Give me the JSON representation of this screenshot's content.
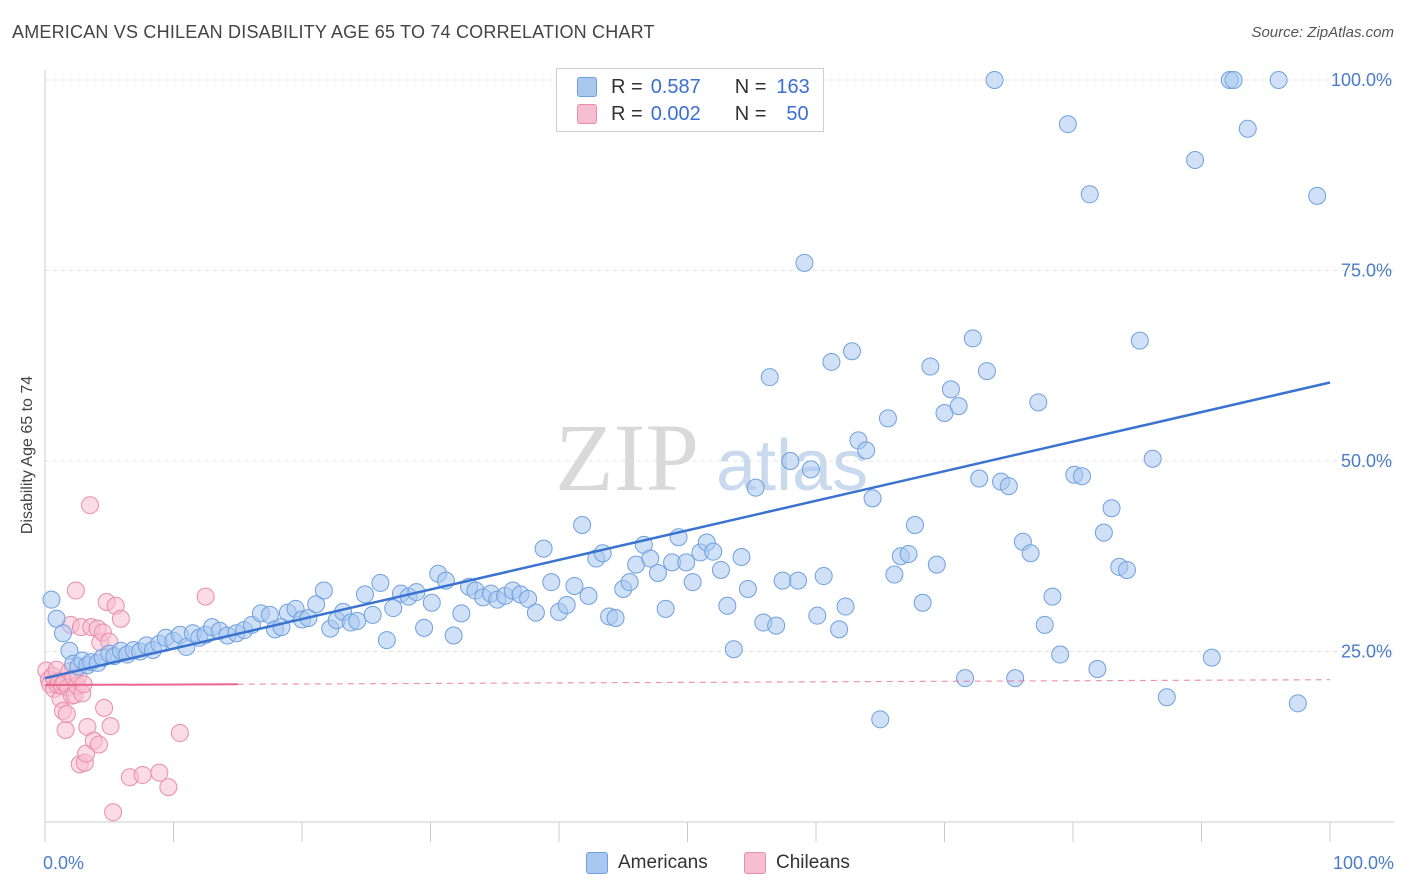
{
  "header": {
    "title": "AMERICAN VS CHILEAN DISABILITY AGE 65 TO 74 CORRELATION CHART",
    "source": "Source: ZipAtlas.com"
  },
  "watermark": {
    "zip": "ZIP",
    "atlas": "atlas"
  },
  "legend": {
    "r_label": "R =",
    "n_label": "N =",
    "americans": {
      "r": "0.587",
      "n": "163"
    },
    "chileans": {
      "r": "0.002",
      "n": "50"
    }
  },
  "colors": {
    "american_fill": "#a9c8f0",
    "american_stroke": "#6fa0e0",
    "american_line": "#3a73d0",
    "chilean_fill": "#f7bdd0",
    "chilean_stroke": "#ea8cab",
    "chilean_line": "#e8668e",
    "tick_text": "#4a7cc9"
  },
  "chart_data": {
    "type": "scatter",
    "title": "AMERICAN VS CHILEAN DISABILITY AGE 65 TO 74 CORRELATION CHART",
    "xlabel": "",
    "ylabel": "Disability Age 65 to 74",
    "xlim": [
      0,
      100
    ],
    "ylim": [
      0,
      102
    ],
    "x_tick_labels": [
      "0.0%",
      "100.0%"
    ],
    "y_ticks": [
      25,
      50,
      75,
      100
    ],
    "y_tick_labels": [
      "25.0%",
      "50.0%",
      "75.0%",
      "100.0%"
    ],
    "grid": true,
    "legend_position": "top-center",
    "series": [
      {
        "name": "Americans",
        "r": 0.587,
        "n": 163,
        "trend": {
          "x": [
            0,
            100
          ],
          "y": [
            21.5,
            60.3
          ]
        },
        "points": [
          [
            0.5,
            31.8
          ],
          [
            0.9,
            29.3
          ],
          [
            1.4,
            27.4
          ],
          [
            1.9,
            25.1
          ],
          [
            2.2,
            23.4
          ],
          [
            2.6,
            23.0
          ],
          [
            2.9,
            23.8
          ],
          [
            3.3,
            23.2
          ],
          [
            3.6,
            23.6
          ],
          [
            4.1,
            23.5
          ],
          [
            4.5,
            24.2
          ],
          [
            5.0,
            24.7
          ],
          [
            5.4,
            24.4
          ],
          [
            5.9,
            25.1
          ],
          [
            6.4,
            24.6
          ],
          [
            6.9,
            25.2
          ],
          [
            7.4,
            25.0
          ],
          [
            7.9,
            25.8
          ],
          [
            8.4,
            25.2
          ],
          [
            8.9,
            26.0
          ],
          [
            9.4,
            26.8
          ],
          [
            10.0,
            26.4
          ],
          [
            10.5,
            27.2
          ],
          [
            11.0,
            25.6
          ],
          [
            11.5,
            27.4
          ],
          [
            12.0,
            26.8
          ],
          [
            12.5,
            27.2
          ],
          [
            13.0,
            28.2
          ],
          [
            13.6,
            27.7
          ],
          [
            14.2,
            27.1
          ],
          [
            14.9,
            27.4
          ],
          [
            15.5,
            27.8
          ],
          [
            16.1,
            28.5
          ],
          [
            16.8,
            30.0
          ],
          [
            17.5,
            29.8
          ],
          [
            17.9,
            27.9
          ],
          [
            18.4,
            28.2
          ],
          [
            18.9,
            30.1
          ],
          [
            19.5,
            30.6
          ],
          [
            20.0,
            29.2
          ],
          [
            20.5,
            29.4
          ],
          [
            21.1,
            31.2
          ],
          [
            21.7,
            33.0
          ],
          [
            22.2,
            28.0
          ],
          [
            22.7,
            29.1
          ],
          [
            23.2,
            30.2
          ],
          [
            23.8,
            28.8
          ],
          [
            24.3,
            29.0
          ],
          [
            24.9,
            32.5
          ],
          [
            25.5,
            29.8
          ],
          [
            26.1,
            34.0
          ],
          [
            26.6,
            26.5
          ],
          [
            27.1,
            30.7
          ],
          [
            27.7,
            32.6
          ],
          [
            28.3,
            32.2
          ],
          [
            28.9,
            32.8
          ],
          [
            29.5,
            28.1
          ],
          [
            30.1,
            31.4
          ],
          [
            30.6,
            35.2
          ],
          [
            31.2,
            34.3
          ],
          [
            31.8,
            27.1
          ],
          [
            32.4,
            30.0
          ],
          [
            33.0,
            33.5
          ],
          [
            33.5,
            33.0
          ],
          [
            34.1,
            32.1
          ],
          [
            34.7,
            32.6
          ],
          [
            35.2,
            31.8
          ],
          [
            35.8,
            32.3
          ],
          [
            36.4,
            33.0
          ],
          [
            37.0,
            32.5
          ],
          [
            37.6,
            31.9
          ],
          [
            38.2,
            30.1
          ],
          [
            38.8,
            38.5
          ],
          [
            39.4,
            34.1
          ],
          [
            40.0,
            30.2
          ],
          [
            40.6,
            31.1
          ],
          [
            41.2,
            33.6
          ],
          [
            41.8,
            41.6
          ],
          [
            42.3,
            32.3
          ],
          [
            42.9,
            37.2
          ],
          [
            43.4,
            37.9
          ],
          [
            43.9,
            29.6
          ],
          [
            44.4,
            29.4
          ],
          [
            45.0,
            33.2
          ],
          [
            45.5,
            34.1
          ],
          [
            46.0,
            36.4
          ],
          [
            46.6,
            39.0
          ],
          [
            47.1,
            37.2
          ],
          [
            47.7,
            35.3
          ],
          [
            48.3,
            30.6
          ],
          [
            48.8,
            36.7
          ],
          [
            49.3,
            40.0
          ],
          [
            49.9,
            36.7
          ],
          [
            50.4,
            34.1
          ],
          [
            51.0,
            38.0
          ],
          [
            51.5,
            39.3
          ],
          [
            52.0,
            38.1
          ],
          [
            52.6,
            35.7
          ],
          [
            53.1,
            31.0
          ],
          [
            53.6,
            25.3
          ],
          [
            54.2,
            37.4
          ],
          [
            54.7,
            33.2
          ],
          [
            55.3,
            46.5
          ],
          [
            55.9,
            28.8
          ],
          [
            56.4,
            61.0
          ],
          [
            56.9,
            28.4
          ],
          [
            57.4,
            34.3
          ],
          [
            58.0,
            50.0
          ],
          [
            58.6,
            34.3
          ],
          [
            59.1,
            76.0
          ],
          [
            59.6,
            48.9
          ],
          [
            60.1,
            29.7
          ],
          [
            60.6,
            34.9
          ],
          [
            61.2,
            63.0
          ],
          [
            61.8,
            27.9
          ],
          [
            62.3,
            30.9
          ],
          [
            62.8,
            64.4
          ],
          [
            63.3,
            52.7
          ],
          [
            63.9,
            51.4
          ],
          [
            64.4,
            45.1
          ],
          [
            65.0,
            16.1
          ],
          [
            65.6,
            55.6
          ],
          [
            66.1,
            35.1
          ],
          [
            66.6,
            37.5
          ],
          [
            67.2,
            37.8
          ],
          [
            67.7,
            41.6
          ],
          [
            68.3,
            31.4
          ],
          [
            68.9,
            62.4
          ],
          [
            69.4,
            36.4
          ],
          [
            70.0,
            56.3
          ],
          [
            70.5,
            59.4
          ],
          [
            71.1,
            57.2
          ],
          [
            71.6,
            21.5
          ],
          [
            72.2,
            66.1
          ],
          [
            72.7,
            47.7
          ],
          [
            73.3,
            61.8
          ],
          [
            73.9,
            100.0
          ],
          [
            74.4,
            47.3
          ],
          [
            75.0,
            46.7
          ],
          [
            75.5,
            21.5
          ],
          [
            76.1,
            39.4
          ],
          [
            76.7,
            37.9
          ],
          [
            77.3,
            57.7
          ],
          [
            77.8,
            28.5
          ],
          [
            78.4,
            32.2
          ],
          [
            79.0,
            24.6
          ],
          [
            79.6,
            94.2
          ],
          [
            80.1,
            48.2
          ],
          [
            80.7,
            48.0
          ],
          [
            81.3,
            85.0
          ],
          [
            81.9,
            22.7
          ],
          [
            82.4,
            40.6
          ],
          [
            83.0,
            43.8
          ],
          [
            83.6,
            36.1
          ],
          [
            84.2,
            35.7
          ],
          [
            85.2,
            65.8
          ],
          [
            86.2,
            50.3
          ],
          [
            87.3,
            19.0
          ],
          [
            89.5,
            89.5
          ],
          [
            90.8,
            24.2
          ],
          [
            92.2,
            100.0
          ],
          [
            92.5,
            100.0
          ],
          [
            93.6,
            93.6
          ],
          [
            96.0,
            100.0
          ],
          [
            97.5,
            18.2
          ],
          [
            99.0,
            84.8
          ]
        ]
      },
      {
        "name": "Chileans",
        "r": 0.002,
        "n": 50,
        "trend": {
          "x": [
            0,
            100
          ],
          "y": [
            20.6,
            21.3
          ]
        },
        "points": [
          [
            0.1,
            22.5
          ],
          [
            0.3,
            21.3
          ],
          [
            0.4,
            20.7
          ],
          [
            0.6,
            21.8
          ],
          [
            0.7,
            20.1
          ],
          [
            0.9,
            22.6
          ],
          [
            1.0,
            20.6
          ],
          [
            1.1,
            21.1
          ],
          [
            1.2,
            18.8
          ],
          [
            1.3,
            20.5
          ],
          [
            1.4,
            17.2
          ],
          [
            1.5,
            20.9
          ],
          [
            1.6,
            14.7
          ],
          [
            1.7,
            16.8
          ],
          [
            1.8,
            20.3
          ],
          [
            1.9,
            22.4
          ],
          [
            2.0,
            28.5
          ],
          [
            2.1,
            19.2
          ],
          [
            2.2,
            21.6
          ],
          [
            2.3,
            19.3
          ],
          [
            2.4,
            33.0
          ],
          [
            2.5,
            20.5
          ],
          [
            2.6,
            21.8
          ],
          [
            2.7,
            10.2
          ],
          [
            2.8,
            28.2
          ],
          [
            2.9,
            19.5
          ],
          [
            3.0,
            20.7
          ],
          [
            3.1,
            10.4
          ],
          [
            3.2,
            11.6
          ],
          [
            3.3,
            15.1
          ],
          [
            3.5,
            44.2
          ],
          [
            3.6,
            28.2
          ],
          [
            3.8,
            13.3
          ],
          [
            4.1,
            28.0
          ],
          [
            4.2,
            12.8
          ],
          [
            4.3,
            26.2
          ],
          [
            4.5,
            27.5
          ],
          [
            4.6,
            17.6
          ],
          [
            4.8,
            31.5
          ],
          [
            5.0,
            26.3
          ],
          [
            5.1,
            15.2
          ],
          [
            5.3,
            3.9
          ],
          [
            5.5,
            31.0
          ],
          [
            5.9,
            29.3
          ],
          [
            6.6,
            8.5
          ],
          [
            7.6,
            8.8
          ],
          [
            8.9,
            9.1
          ],
          [
            9.6,
            7.2
          ],
          [
            10.5,
            14.3
          ],
          [
            12.5,
            32.2
          ]
        ]
      }
    ]
  }
}
